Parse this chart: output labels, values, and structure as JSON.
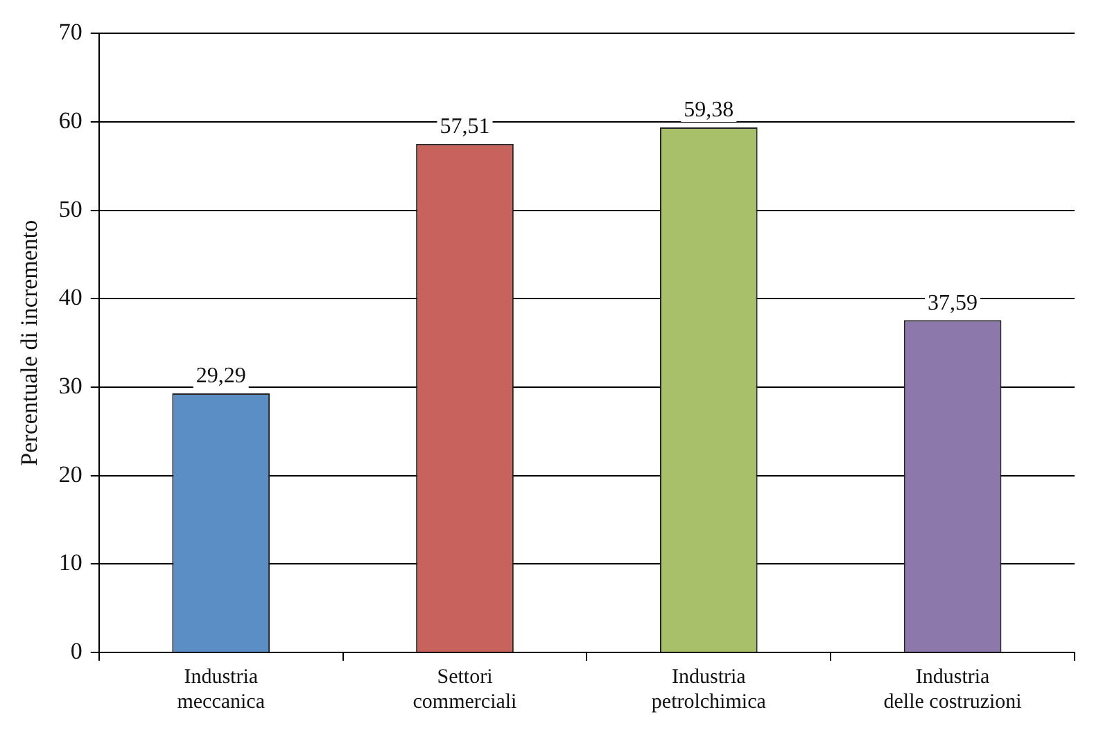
{
  "chart_data": {
    "type": "bar",
    "ylabel": "Percentuale di incremento",
    "categories": [
      "Industria meccanica",
      "Settori commerciali",
      "Industria petrolchimica",
      "Industria delle costruzioni"
    ],
    "values": [
      29.29,
      57.51,
      59.38,
      37.59
    ],
    "colors": [
      "#5b8ec4",
      "#c8625c",
      "#a8c06a",
      "#8d78ab"
    ],
    "value_labels": [
      "29,29",
      "57,51",
      "59,38",
      "37,59"
    ],
    "ylim": [
      0,
      70
    ],
    "yticks": [
      0,
      10,
      20,
      30,
      40,
      50,
      60,
      70
    ],
    "grid": "y",
    "legend": false
  }
}
